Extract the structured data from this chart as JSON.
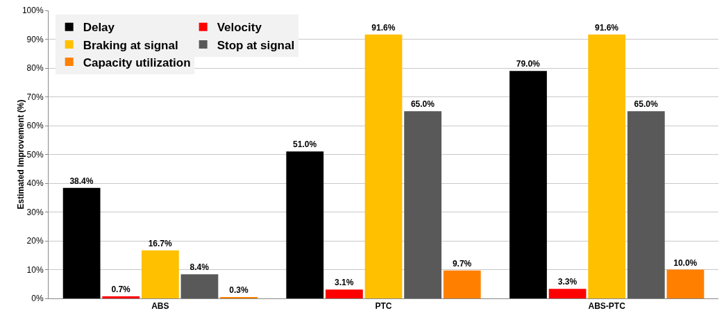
{
  "chart_data": {
    "type": "bar",
    "ylabel": "Estimated Improvement (%)",
    "categories": [
      "ABS",
      "PTC",
      "ABS-PTC"
    ],
    "series": [
      {
        "name": "Delay",
        "color": "#000000",
        "values": [
          38.4,
          51.0,
          79.0
        ],
        "value_labels": [
          "38.4%",
          "51.0%",
          "79.0%"
        ]
      },
      {
        "name": "Velocity",
        "color": "#ff0000",
        "values": [
          0.7,
          3.1,
          3.3
        ],
        "value_labels": [
          "0.7%",
          "3.1%",
          "3.3%"
        ]
      },
      {
        "name": "Braking at signal",
        "color": "#ffc000",
        "values": [
          16.7,
          91.6,
          91.6
        ],
        "value_labels": [
          "16.7%",
          "91.6%",
          "91.6%"
        ]
      },
      {
        "name": "Stop at signal",
        "color": "#595959",
        "values": [
          8.4,
          65.0,
          65.0
        ],
        "value_labels": [
          "8.4%",
          "65.0%",
          "65.0%"
        ]
      },
      {
        "name": "Capacity utilization",
        "color": "#ff8000",
        "values": [
          0.3,
          9.7,
          10.0
        ],
        "value_labels": [
          "0.3%",
          "9.7%",
          "10.0%"
        ]
      }
    ],
    "ylim": [
      0,
      100
    ],
    "yticks": [
      {
        "value": 0,
        "label": "0%"
      },
      {
        "value": 10,
        "label": "10%"
      },
      {
        "value": 20,
        "label": "20%"
      },
      {
        "value": 30,
        "label": "30%"
      },
      {
        "value": 40,
        "label": "40%"
      },
      {
        "value": 50,
        "label": "50%"
      },
      {
        "value": 60,
        "label": "60%"
      },
      {
        "value": 70,
        "label": "70%"
      },
      {
        "value": 80,
        "label": "80%"
      },
      {
        "value": 90,
        "label": "90%"
      },
      {
        "value": 100,
        "label": "100%"
      }
    ],
    "grid": "y",
    "legend": "top left"
  }
}
